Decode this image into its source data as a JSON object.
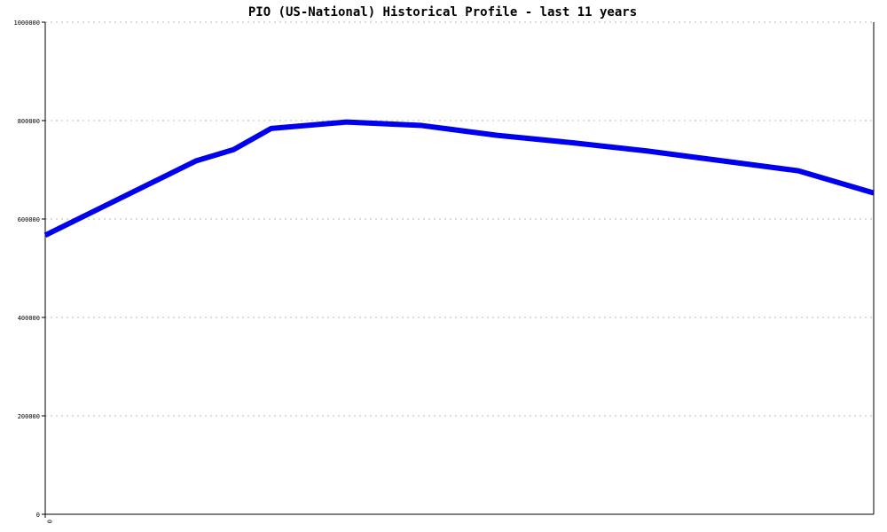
{
  "chart_data": {
    "type": "line",
    "title": "PIO (US-National) Historical Profile - last 11 years",
    "xlabel": "",
    "ylabel": "",
    "ylim": [
      0,
      1000000
    ],
    "yticks": [
      0,
      200000,
      400000,
      600000,
      800000,
      1000000
    ],
    "ytick_labels": [
      "0",
      "200000",
      "400000",
      "600000",
      "800000",
      "1000000"
    ],
    "xtick_labels": [
      "0"
    ],
    "xlim": [
      0,
      11
    ],
    "grid": true,
    "legend": "none",
    "series": [
      {
        "color": "#0000ee",
        "x": [
          0,
          2,
          2.5,
          3,
          4,
          5,
          6,
          7,
          8,
          9,
          10,
          11
        ],
        "values": [
          567000,
          718000,
          741000,
          784000,
          797000,
          790000,
          770000,
          755000,
          738000,
          718000,
          698000,
          653000
        ]
      }
    ]
  }
}
